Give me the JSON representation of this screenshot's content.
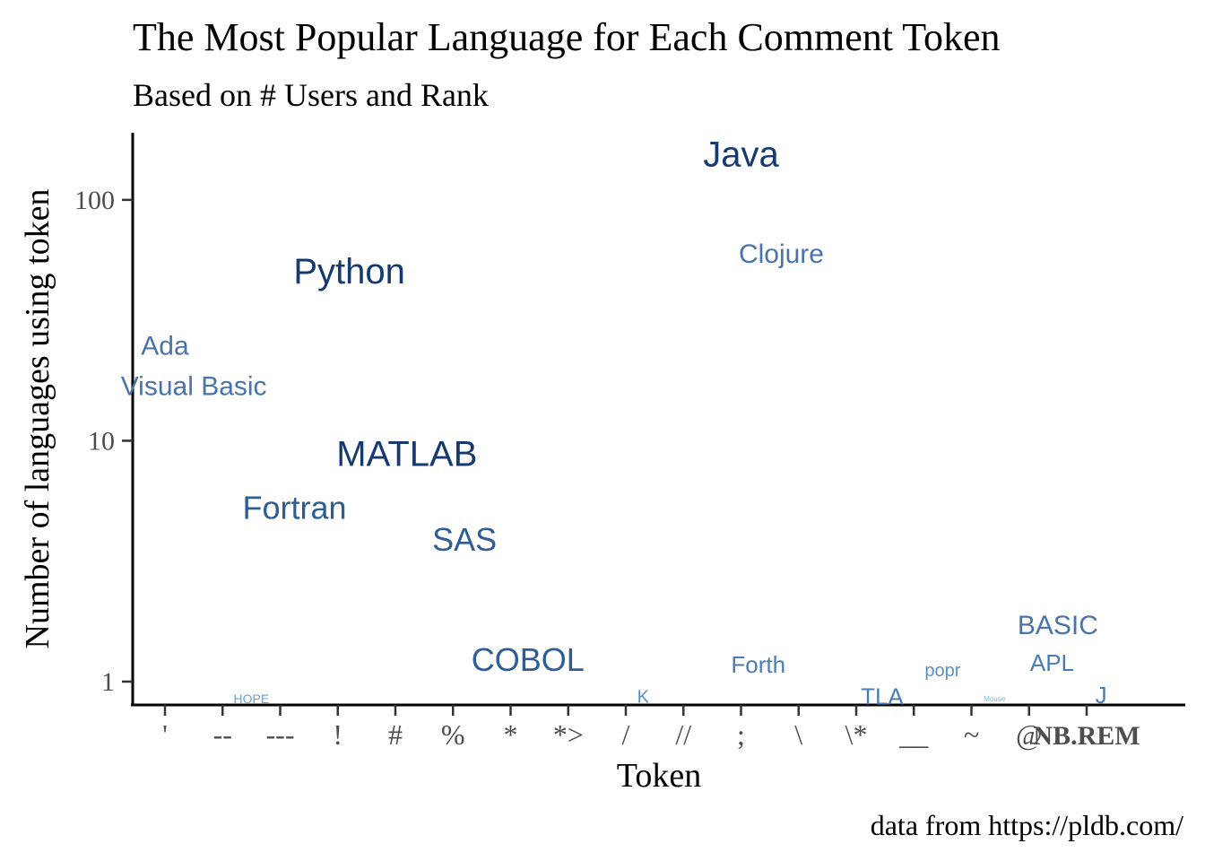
{
  "chart_data": {
    "type": "scatter",
    "title": "The Most Popular Language for Each Comment Token",
    "subtitle": "Based on # Users and Rank",
    "xlabel": "Token",
    "ylabel": "Number of languages using token",
    "caption": "data from https://pldb.com/",
    "y_scale": "log",
    "ylim": [
      0.8,
      190
    ],
    "y_ticks": [
      {
        "value": 1,
        "label": "1"
      },
      {
        "value": 10,
        "label": "10"
      },
      {
        "value": 100,
        "label": "100"
      }
    ],
    "categories": [
      "'",
      "--",
      "---",
      "!",
      "#",
      "%",
      "*",
      "*>",
      "/",
      "//",
      ";",
      "\\",
      "\\*",
      "__",
      "~",
      "@",
      "NB.REM"
    ],
    "points": [
      {
        "language": "Ada",
        "x": 0,
        "y": 25,
        "rank": 2
      },
      {
        "language": "Visual Basic",
        "x": 0.5,
        "y": 17,
        "rank": 2
      },
      {
        "language": "HOPE",
        "x": 1.5,
        "y": 0.85,
        "rank": 5
      },
      {
        "language": "Fortran",
        "x": 2.25,
        "y": 5.3,
        "rank": 1
      },
      {
        "language": "Python",
        "x": 3.2,
        "y": 51,
        "rank": 0
      },
      {
        "language": "MATLAB",
        "x": 4.2,
        "y": 8.9,
        "rank": 0
      },
      {
        "language": "SAS",
        "x": 5.2,
        "y": 3.9,
        "rank": 1
      },
      {
        "language": "COBOL",
        "x": 6.3,
        "y": 1.24,
        "rank": 1
      },
      {
        "language": "K",
        "x": 8.3,
        "y": 0.87,
        "rank": 4
      },
      {
        "language": "Java",
        "x": 10,
        "y": 156,
        "rank": 0
      },
      {
        "language": "Clojure",
        "x": 10.7,
        "y": 60,
        "rank": 2
      },
      {
        "language": "Forth",
        "x": 10.3,
        "y": 1.18,
        "rank": 3
      },
      {
        "language": "TLA",
        "x": 12.45,
        "y": 0.87,
        "rank": 3
      },
      {
        "language": "popr",
        "x": 13.5,
        "y": 1.12,
        "rank": 4
      },
      {
        "language": "Mouse",
        "x": 14.4,
        "y": 0.85,
        "rank": 6
      },
      {
        "language": "BASIC",
        "x": 15.5,
        "y": 1.73,
        "rank": 2
      },
      {
        "language": "APL",
        "x": 15.4,
        "y": 1.2,
        "rank": 3
      },
      {
        "language": "J",
        "x": 16.25,
        "y": 0.88,
        "rank": 3
      }
    ],
    "rank_styles": [
      {
        "rank": 0,
        "size": 40,
        "color": "#163a70"
      },
      {
        "rank": 1,
        "size": 36,
        "color": "#2e5d95"
      },
      {
        "rank": 2,
        "size": 30,
        "color": "#4a74a8"
      },
      {
        "rank": 3,
        "size": 26,
        "color": "#4a7db3"
      },
      {
        "rank": 4,
        "size": 20,
        "color": "#5a90c2"
      },
      {
        "rank": 5,
        "size": 14,
        "color": "#6fa0cc"
      },
      {
        "rank": 6,
        "size": 8,
        "color": "#7fb0da"
      }
    ],
    "legend": "none",
    "grid": false
  }
}
